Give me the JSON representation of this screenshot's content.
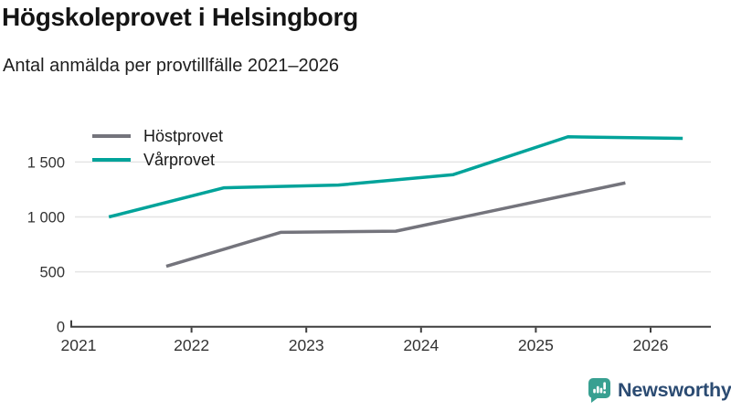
{
  "chart_data": {
    "type": "line",
    "title": "Högskoleprovet i Helsingborg",
    "subtitle": "Antal anmälda per provtillfälle 2021–2026",
    "xlabel": "",
    "ylabel": "",
    "xlim": [
      2021,
      2026.55
    ],
    "ylim": [
      0,
      1750
    ],
    "grid": "horizontal-only",
    "legend_position": "top-left",
    "axis_color": "#3f3f3f",
    "grid_color": "#e4e4e4",
    "tick_label_color": "#333333",
    "series": [
      {
        "name": "Höstprovet",
        "color": "#74747c",
        "x": [
          2021.78,
          2022.78,
          2023.78,
          2024.78,
          2025.78
        ],
        "values": [
          550,
          860,
          870,
          1090,
          1310
        ]
      },
      {
        "name": "Vårprovet",
        "color": "#00a39a",
        "x": [
          2021.28,
          2022.28,
          2023.28,
          2024.28,
          2025.28,
          2026.28
        ],
        "values": [
          1000,
          1265,
          1290,
          1385,
          1730,
          1715
        ]
      }
    ],
    "xticks": {
      "values": [
        2021,
        2022,
        2023,
        2024,
        2025,
        2026
      ],
      "labels": [
        "2021",
        "2022",
        "2023",
        "2024",
        "2025",
        "2026"
      ]
    },
    "yticks": {
      "values": [
        0,
        500,
        1000,
        1500
      ],
      "labels": [
        "0",
        "500",
        "1 000",
        "1 500"
      ]
    }
  },
  "branding": {
    "name": "Newsworthy",
    "icon": "newsworthy-speech-bubble-bar-chart-icon",
    "icon_color": "#38a091",
    "text_color": "#2b4b72"
  }
}
